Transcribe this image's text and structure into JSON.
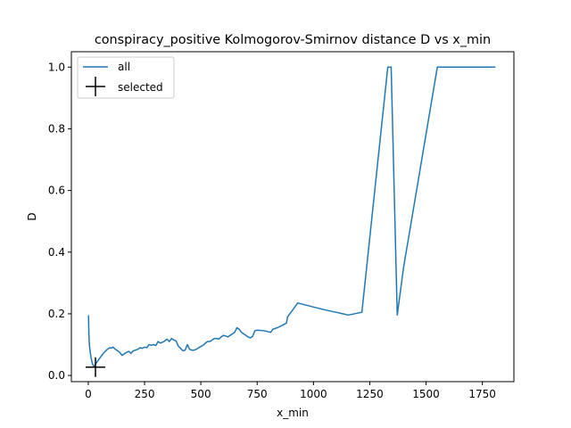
{
  "chart_data": {
    "type": "line",
    "title": "conspiracy_positive Kolmogorov-Smirnov distance D vs x_min",
    "xlabel": "x_min",
    "ylabel": "D",
    "xlim": [
      -75,
      1890
    ],
    "ylim": [
      -0.02,
      1.05
    ],
    "xticks": [
      0,
      250,
      500,
      750,
      1000,
      1250,
      1500,
      1750
    ],
    "yticks": [
      0.0,
      0.2,
      0.4,
      0.6,
      0.8,
      1.0
    ],
    "xtick_labels": [
      "0",
      "250",
      "500",
      "750",
      "1000",
      "1250",
      "1500",
      "1750"
    ],
    "ytick_labels": [
      "0.0",
      "0.2",
      "0.4",
      "0.6",
      "0.8",
      "1.0"
    ],
    "grid": false,
    "legend_position": "upper-left",
    "series": [
      {
        "name": "all",
        "color": "#1f77b4",
        "x": [
          1,
          3,
          5,
          8,
          12,
          16,
          20,
          25,
          30,
          35,
          45,
          55,
          65,
          75,
          85,
          95,
          100,
          110,
          120,
          130,
          140,
          150,
          160,
          170,
          180,
          190,
          200,
          210,
          220,
          230,
          240,
          250,
          260,
          270,
          280,
          290,
          300,
          310,
          320,
          330,
          340,
          350,
          360,
          370,
          380,
          390,
          400,
          410,
          420,
          430,
          440,
          450,
          460,
          470,
          480,
          490,
          500,
          510,
          520,
          530,
          540,
          550,
          560,
          570,
          580,
          590,
          600,
          610,
          620,
          630,
          640,
          650,
          660,
          670,
          680,
          690,
          700,
          710,
          720,
          730,
          740,
          750,
          780,
          810,
          820,
          840,
          860,
          880,
          885,
          900,
          920,
          930,
          1000,
          1050,
          1100,
          1155,
          1215,
          1330,
          1335,
          1345,
          1372,
          1400,
          1550,
          1600,
          1700,
          1808
        ],
        "y": [
          0.195,
          0.13,
          0.1,
          0.08,
          0.06,
          0.045,
          0.035,
          0.03,
          0.033,
          0.04,
          0.05,
          0.06,
          0.07,
          0.078,
          0.085,
          0.09,
          0.088,
          0.092,
          0.085,
          0.08,
          0.075,
          0.065,
          0.07,
          0.075,
          0.078,
          0.072,
          0.08,
          0.082,
          0.085,
          0.09,
          0.088,
          0.092,
          0.09,
          0.1,
          0.098,
          0.1,
          0.097,
          0.11,
          0.105,
          0.108,
          0.112,
          0.118,
          0.11,
          0.12,
          0.115,
          0.112,
          0.095,
          0.088,
          0.08,
          0.082,
          0.1,
          0.085,
          0.082,
          0.082,
          0.085,
          0.09,
          0.094,
          0.098,
          0.105,
          0.11,
          0.11,
          0.115,
          0.12,
          0.12,
          0.118,
          0.125,
          0.13,
          0.128,
          0.125,
          0.13,
          0.135,
          0.14,
          0.155,
          0.15,
          0.14,
          0.135,
          0.13,
          0.125,
          0.122,
          0.127,
          0.145,
          0.147,
          0.145,
          0.14,
          0.15,
          0.155,
          0.162,
          0.17,
          0.19,
          0.205,
          0.225,
          0.235,
          0.222,
          0.213,
          0.205,
          0.196,
          0.205,
          1.0,
          1.0,
          1.0,
          0.196,
          0.35,
          1.0,
          1.0,
          1.0,
          1.0
        ]
      },
      {
        "name": "selected",
        "color": "#000000",
        "marker": "plus",
        "x": [
          32
        ],
        "y": [
          0.027
        ]
      }
    ]
  }
}
